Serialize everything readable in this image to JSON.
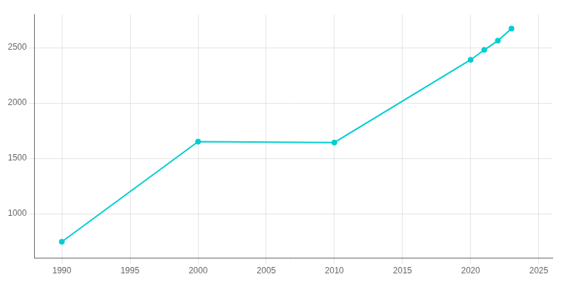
{
  "chart_data": {
    "type": "line",
    "x": [
      1990,
      2000,
      2010,
      2020,
      2021,
      2022,
      2023
    ],
    "values": [
      748,
      1652,
      1644,
      2390,
      2479,
      2562,
      2672
    ],
    "color": "#00CED1",
    "marker": "circle",
    "xlim": [
      1988,
      2026
    ],
    "xticks": [
      1990,
      1995,
      2000,
      2005,
      2010,
      2015,
      2020,
      2025
    ],
    "ylim": [
      600,
      2800
    ],
    "yticks": [
      1000,
      1500,
      2000,
      2500
    ],
    "grid": true
  }
}
